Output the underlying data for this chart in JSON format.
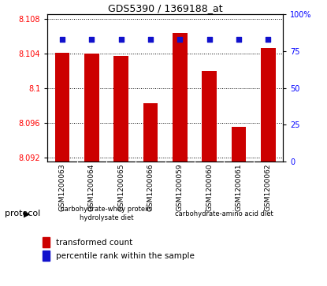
{
  "title": "GDS5390 / 1369188_at",
  "samples": [
    "GSM1200063",
    "GSM1200064",
    "GSM1200065",
    "GSM1200066",
    "GSM1200059",
    "GSM1200060",
    "GSM1200061",
    "GSM1200062"
  ],
  "red_values": [
    8.1041,
    8.104,
    8.1037,
    8.0982,
    8.1063,
    8.102,
    8.0955,
    8.1046
  ],
  "blue_values": [
    83,
    83,
    83,
    83,
    83,
    83,
    83,
    83
  ],
  "ymin": 8.0915,
  "ymax": 8.1085,
  "y_ticks": [
    8.092,
    8.096,
    8.1,
    8.104,
    8.108
  ],
  "y_tick_labels": [
    "8.092",
    "8.096",
    "8.1",
    "8.104",
    "8.108"
  ],
  "y2_ticks": [
    0,
    25,
    50,
    75,
    100
  ],
  "y2_tick_labels": [
    "0",
    "25",
    "50",
    "75",
    "100%"
  ],
  "bar_color": "#cc0000",
  "dot_color": "#1111cc",
  "protocol_label1": "carbohydrate-whey protein\nhydrolysate diet",
  "protocol_label2": "carbohydrate-amino acid diet",
  "protocol_color1": "#aaddaa",
  "protocol_color2": "#66cc66",
  "legend_entry1": "transformed count",
  "legend_entry2": "percentile rank within the sample",
  "protocol_text": "protocol",
  "base": 8.0915,
  "bg_gray": "#cccccc",
  "title_fontsize": 9,
  "tick_fontsize": 7,
  "label_fontsize": 6.5,
  "legend_fontsize": 7.5
}
